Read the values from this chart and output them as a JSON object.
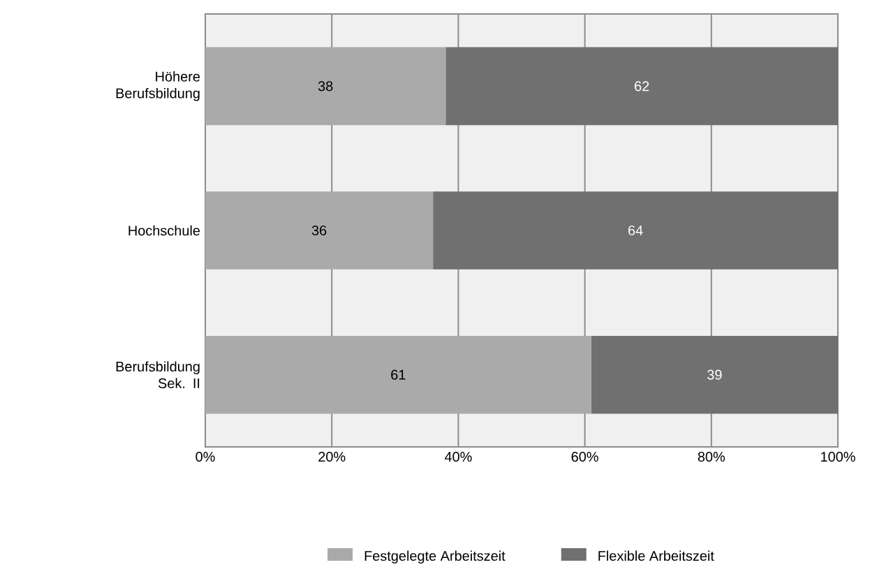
{
  "chart_data": {
    "type": "bar",
    "orientation": "horizontal",
    "stacked": true,
    "categories": [
      "Höhere Berufsbildung",
      "Hochschule",
      "Berufsbildung Sek. II"
    ],
    "series": [
      {
        "name": "Festgelegte Arbeitszeit",
        "color": "#aaaaaa",
        "values": [
          38,
          36,
          61
        ]
      },
      {
        "name": "Flexible Arbeitszeit",
        "color": "#707070",
        "values": [
          62,
          64,
          39
        ]
      }
    ],
    "xlim": [
      0,
      100
    ],
    "xticks": [
      {
        "value": 0,
        "label": "0%"
      },
      {
        "value": 20,
        "label": "20%"
      },
      {
        "value": 40,
        "label": "40%"
      },
      {
        "value": 60,
        "label": "60%"
      },
      {
        "value": 80,
        "label": "80%"
      },
      {
        "value": 100,
        "label": "100%"
      }
    ],
    "grid": "x",
    "legend": "bottom",
    "data_labels": true
  }
}
